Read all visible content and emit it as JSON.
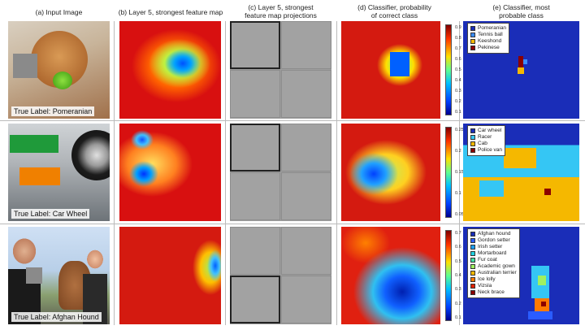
{
  "headers": {
    "a": "(a) Input Image",
    "b": "(b) Layer 5, strongest feature map",
    "c_line1": "(c) Layer 5, strongest",
    "c_line2": "feature map projections",
    "d_line1": "(d) Classifier, probability",
    "d_line2": "of correct class",
    "e_line1": "(e) Classifier, most",
    "e_line2": "probable class"
  },
  "rows": [
    {
      "true_label": "True Label: Pomeranian",
      "ticks": [
        "0.9",
        "0.8",
        "0.7",
        "0.6",
        "0.5",
        "0.4",
        "0.3",
        "0.2",
        "0.1"
      ],
      "legend": [
        {
          "name": "Pomeranian",
          "color": "#1a2db8"
        },
        {
          "name": "Tennis ball",
          "color": "#3a8cff"
        },
        {
          "name": "Keeshond",
          "color": "#f5b800"
        },
        {
          "name": "Pekinese",
          "color": "#8b0000"
        }
      ]
    },
    {
      "true_label": "True Label: Car Wheel",
      "ticks": [
        "0.25",
        "0.2",
        "0.15",
        "0.1",
        "0.05"
      ],
      "legend": [
        {
          "name": "Car wheel",
          "color": "#1a2db8"
        },
        {
          "name": "Racer",
          "color": "#35c6f4"
        },
        {
          "name": "Cab",
          "color": "#f5b800"
        },
        {
          "name": "Police van",
          "color": "#8b0000"
        }
      ]
    },
    {
      "true_label": "True Label: Afghan Hound",
      "ticks": [
        "0.7",
        "0.6",
        "0.5",
        "0.4",
        "0.3",
        "0.2",
        "0.1"
      ],
      "legend": [
        {
          "name": "Afghan hound",
          "color": "#1a2db8"
        },
        {
          "name": "Gordon setter",
          "color": "#2a5cff"
        },
        {
          "name": "Irish setter",
          "color": "#1aa0ff"
        },
        {
          "name": "Mortarboard",
          "color": "#20d0e0"
        },
        {
          "name": "Fur coat",
          "color": "#40e0a0"
        },
        {
          "name": "Academic gown",
          "color": "#a0f060"
        },
        {
          "name": "Australian terrier",
          "color": "#f5b800"
        },
        {
          "name": "Ice lolly",
          "color": "#ff7a00"
        },
        {
          "name": "Vizsla",
          "color": "#e02000"
        },
        {
          "name": "Neck brace",
          "color": "#8b0000"
        }
      ]
    }
  ]
}
